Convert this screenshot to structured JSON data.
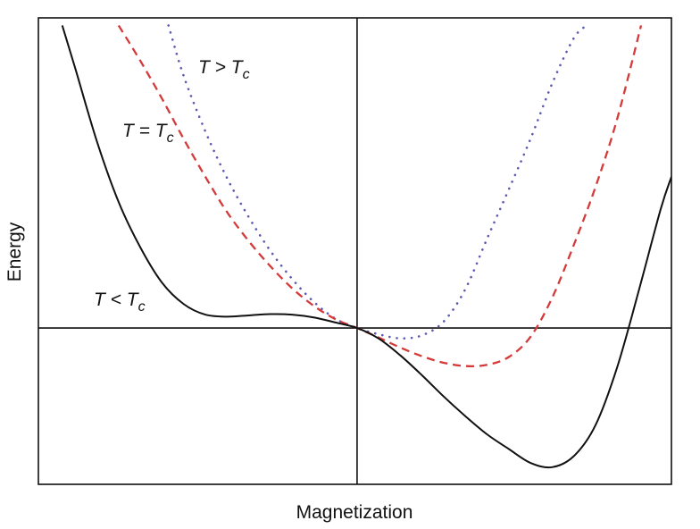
{
  "chart_data": {
    "type": "line",
    "title": "",
    "xlabel": "Magnetization",
    "ylabel": "Energy",
    "grid": false,
    "xlim": [
      -1.47,
      1.45
    ],
    "ylim": [
      -0.62,
      1.23
    ],
    "reference_lines": {
      "horizontal_at_y": 0,
      "vertical_at_x": 0
    },
    "series": [
      {
        "label_parts": [
          "T > T",
          "c"
        ],
        "style": "dotted",
        "color": "#5a5ab0",
        "x": [
          -0.87,
          -0.8,
          -0.7,
          -0.6,
          -0.5,
          -0.4,
          -0.3,
          -0.2,
          -0.1,
          0,
          0.1,
          0.2,
          0.3,
          0.4,
          0.5,
          0.6,
          0.7,
          0.8,
          0.9,
          1.0,
          1.06
        ],
        "y": [
          1.2,
          1.0,
          0.78,
          0.595,
          0.44,
          0.306,
          0.195,
          0.104,
          0.037,
          0,
          -0.025,
          -0.041,
          -0.029,
          0.026,
          0.155,
          0.355,
          0.55,
          0.75,
          0.97,
          1.15,
          1.2
        ]
      },
      {
        "label_parts": [
          "T = T",
          "c"
        ],
        "style": "dashed",
        "color": "#d43a3a",
        "x": [
          -1.1,
          -1.0,
          -0.9,
          -0.8,
          -0.7,
          -0.6,
          -0.5,
          -0.4,
          -0.3,
          -0.2,
          -0.1,
          0,
          0.1,
          0.2,
          0.3,
          0.4,
          0.5,
          0.6,
          0.7,
          0.8,
          0.9,
          1.0,
          1.1,
          1.2,
          1.31
        ],
        "y": [
          1.2,
          1.06,
          0.91,
          0.75,
          0.6,
          0.46,
          0.345,
          0.245,
          0.158,
          0.088,
          0.035,
          0,
          -0.038,
          -0.078,
          -0.112,
          -0.138,
          -0.151,
          -0.146,
          -0.115,
          -0.035,
          0.12,
          0.33,
          0.56,
          0.83,
          1.2
        ]
      },
      {
        "label_parts": [
          "T < T",
          "c"
        ],
        "style": "solid",
        "color": "#111111",
        "x": [
          -1.36,
          -1.3,
          -1.2,
          -1.1,
          -1.0,
          -0.9,
          -0.8,
          -0.7,
          -0.6,
          -0.5,
          -0.4,
          -0.3,
          -0.2,
          -0.1,
          0,
          0.1,
          0.2,
          0.3,
          0.4,
          0.5,
          0.6,
          0.7,
          0.8,
          0.9,
          1.0,
          1.1,
          1.2,
          1.3,
          1.4,
          1.45
        ],
        "y": [
          1.2,
          1.03,
          0.74,
          0.5,
          0.32,
          0.18,
          0.095,
          0.053,
          0.045,
          0.05,
          0.055,
          0.053,
          0.042,
          0.022,
          0,
          -0.042,
          -0.109,
          -0.188,
          -0.272,
          -0.35,
          -0.422,
          -0.48,
          -0.535,
          -0.552,
          -0.508,
          -0.385,
          -0.155,
          0.15,
          0.47,
          0.6
        ]
      }
    ]
  }
}
